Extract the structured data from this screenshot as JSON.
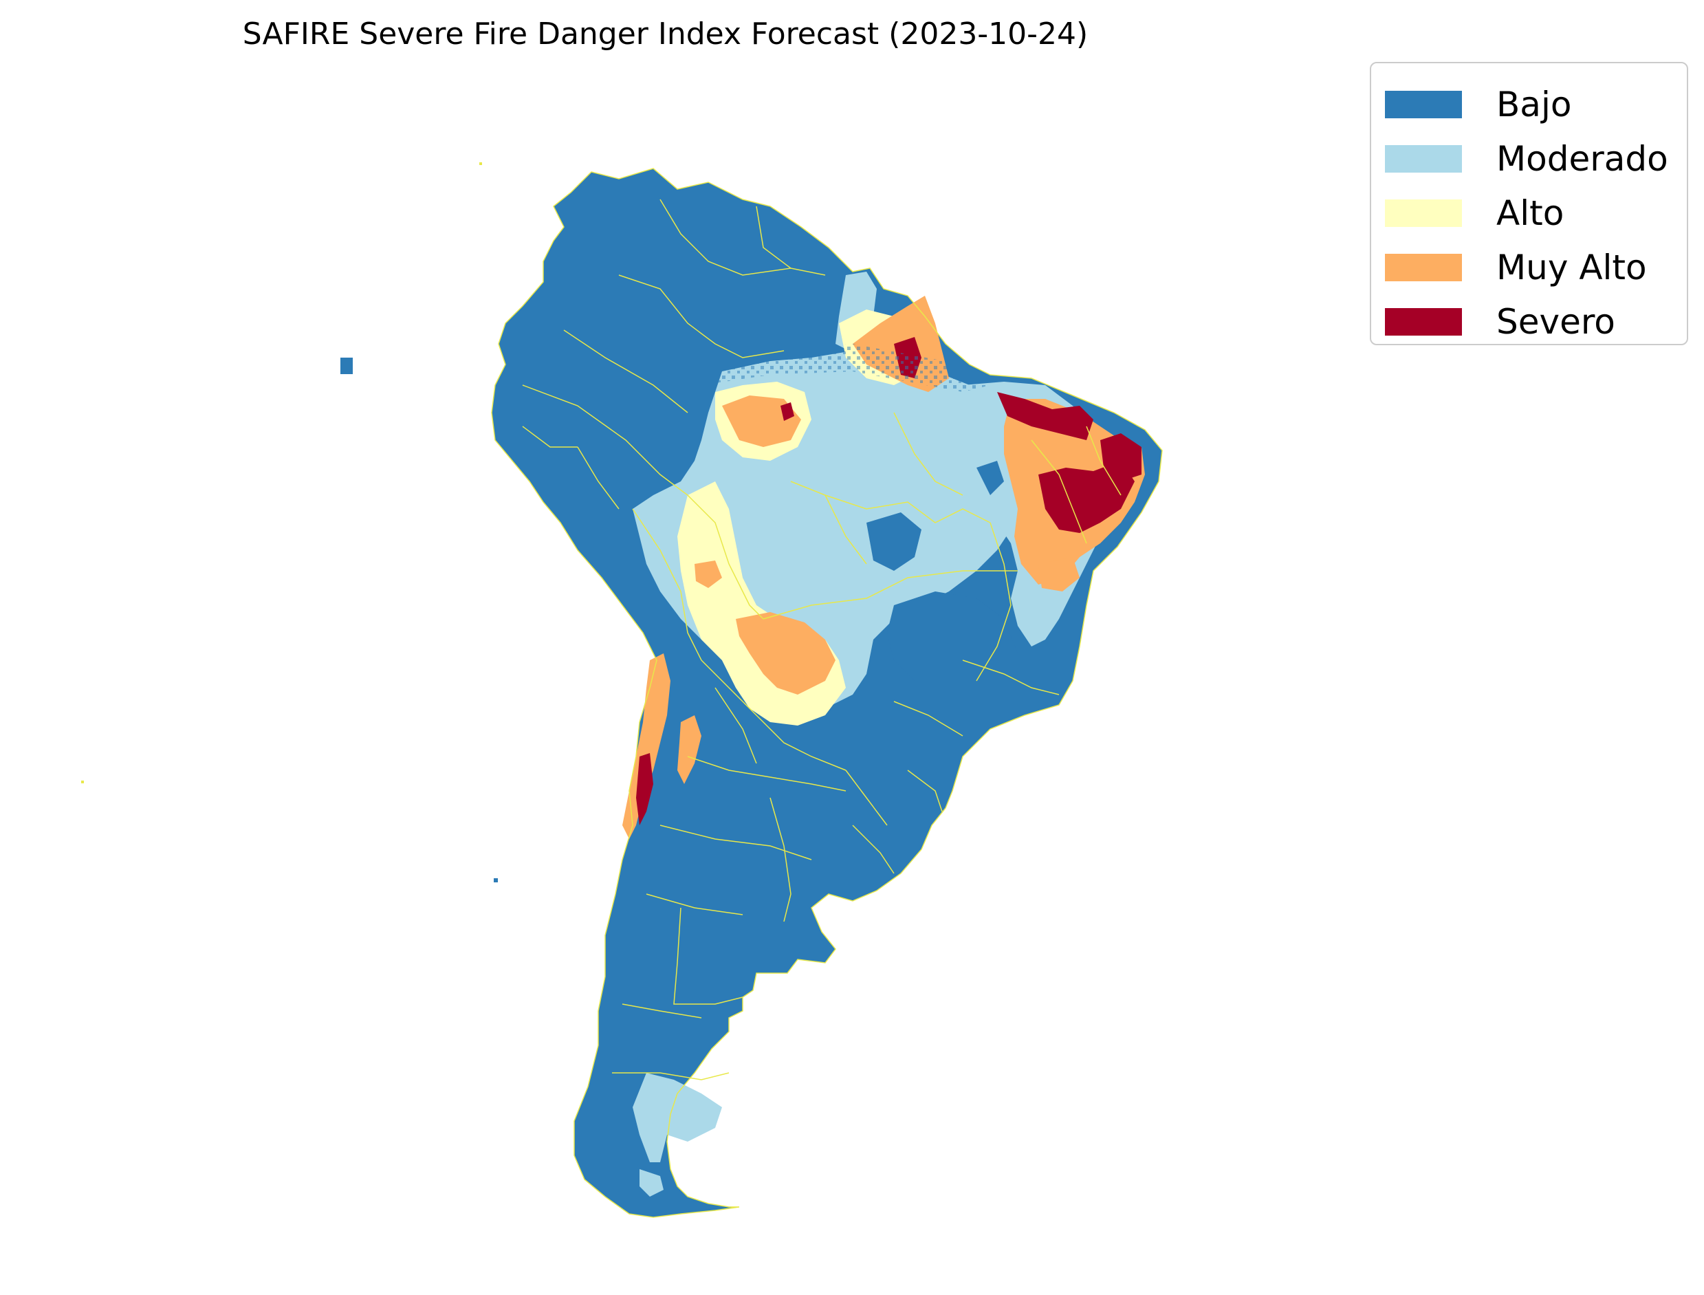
{
  "title": "SAFIRE Severe Fire Danger Index Forecast (2023-10-24)",
  "legend": {
    "items": [
      {
        "label": "Bajo",
        "color": "#2c7bb6"
      },
      {
        "label": "Moderado",
        "color": "#abd9e9"
      },
      {
        "label": "Alto",
        "color": "#ffffbf"
      },
      {
        "label": "Muy Alto",
        "color": "#fdae61"
      },
      {
        "label": "Severo",
        "color": "#a50026"
      }
    ]
  },
  "map": {
    "region": "South America",
    "boundary_color": "#e8e84a",
    "classes": {
      "bajo": "#2c7bb6",
      "moderado": "#abd9e9",
      "alto": "#ffffbf",
      "muy_alto": "#fdae61",
      "severo": "#a50026"
    }
  }
}
